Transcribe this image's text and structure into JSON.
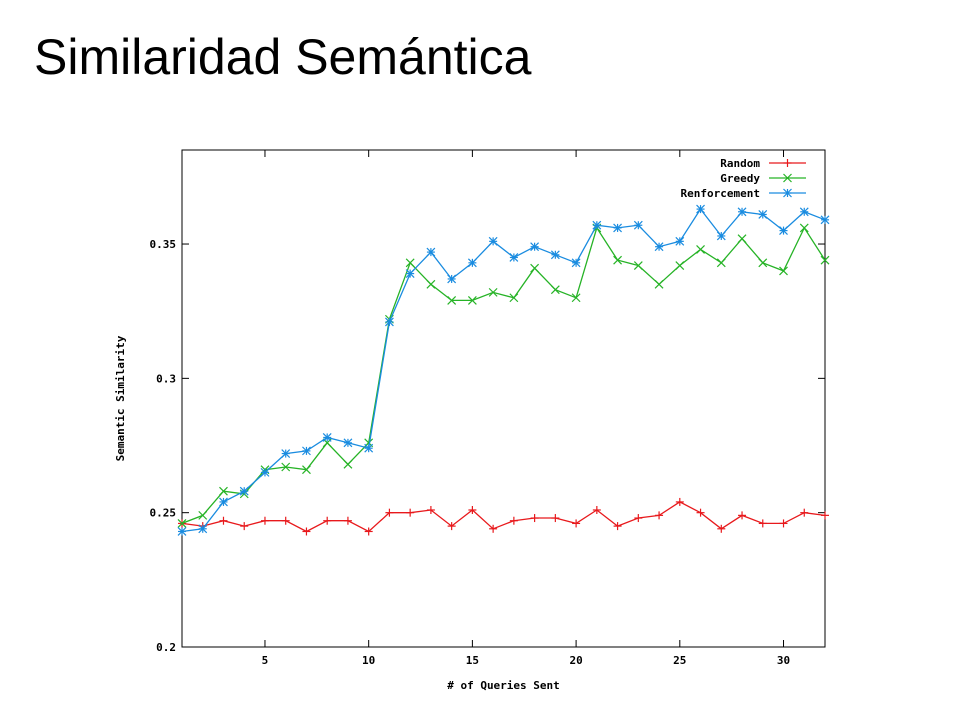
{
  "slide": {
    "title": "Similaridad Semántica"
  },
  "chart_data": {
    "type": "line",
    "title": "",
    "xlabel": "# of Queries Sent",
    "ylabel": "Semantic Similarity",
    "xlim": [
      1,
      32
    ],
    "ylim": [
      0.2,
      0.385
    ],
    "xticks": [
      5,
      10,
      15,
      20,
      25,
      30
    ],
    "xtick_labels": [
      "5",
      "10",
      "15",
      "20",
      "25",
      "30"
    ],
    "yticks": [
      0.2,
      0.25,
      0.3,
      0.35
    ],
    "ytick_labels": [
      "0.2",
      "0.25",
      "0.3",
      "0.35"
    ],
    "grid": false,
    "legend_position": "top-right",
    "x": [
      1,
      2,
      3,
      4,
      5,
      6,
      7,
      8,
      9,
      10,
      11,
      12,
      13,
      14,
      15,
      16,
      17,
      18,
      19,
      20,
      21,
      22,
      23,
      24,
      25,
      26,
      27,
      28,
      29,
      30,
      31,
      32
    ],
    "series": [
      {
        "name": "Random",
        "color": "#e8191c",
        "marker": "+",
        "values": [
          0.246,
          0.245,
          0.247,
          0.245,
          0.247,
          0.247,
          0.243,
          0.247,
          0.247,
          0.243,
          0.25,
          0.25,
          0.251,
          0.245,
          0.251,
          0.244,
          0.247,
          0.248,
          0.248,
          0.246,
          0.251,
          0.245,
          0.248,
          0.249,
          0.254,
          0.25,
          0.244,
          0.249,
          0.246,
          0.246,
          0.25,
          0.249
        ]
      },
      {
        "name": "Greedy",
        "color": "#26b326",
        "marker": "x",
        "values": [
          0.246,
          0.249,
          0.258,
          0.257,
          0.266,
          0.267,
          0.266,
          0.276,
          0.268,
          0.276,
          0.322,
          0.343,
          0.335,
          0.329,
          0.329,
          0.332,
          0.33,
          0.341,
          0.333,
          0.33,
          0.356,
          0.344,
          0.342,
          0.335,
          0.342,
          0.348,
          0.343,
          0.352,
          0.343,
          0.34,
          0.356,
          0.344
        ]
      },
      {
        "name": "Renforcement",
        "color": "#1a8ce0",
        "marker": "*",
        "values": [
          0.243,
          0.244,
          0.254,
          0.258,
          0.265,
          0.272,
          0.273,
          0.278,
          0.276,
          0.274,
          0.321,
          0.339,
          0.347,
          0.337,
          0.343,
          0.351,
          0.345,
          0.349,
          0.346,
          0.343,
          0.357,
          0.356,
          0.357,
          0.349,
          0.351,
          0.363,
          0.353,
          0.362,
          0.361,
          0.355,
          0.362,
          0.359
        ]
      }
    ]
  }
}
